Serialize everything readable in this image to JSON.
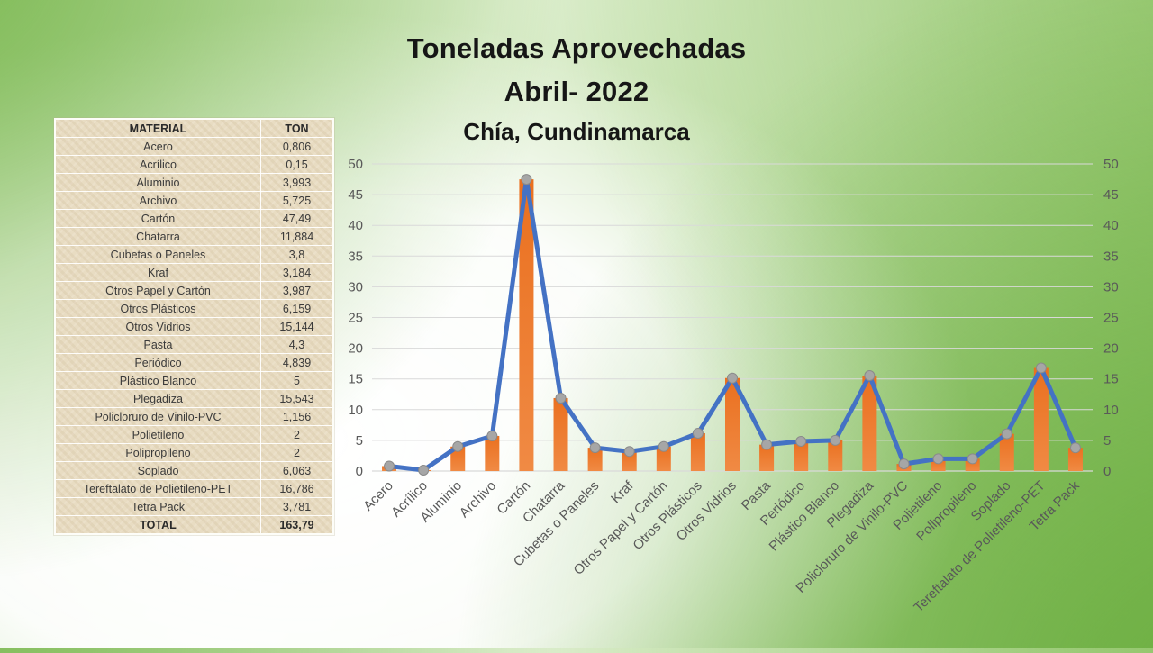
{
  "slide": {
    "title_line1": "Toneladas Aprovechadas",
    "title_line2": "Abril- 2022",
    "subtitle": "Chía, Cundinamarca"
  },
  "table": {
    "headers": [
      "MATERIAL",
      "TON"
    ],
    "rows": [
      [
        "Acero",
        "0,806"
      ],
      [
        "Acrílico",
        "0,15"
      ],
      [
        "Aluminio",
        "3,993"
      ],
      [
        "Archivo",
        "5,725"
      ],
      [
        "Cartón",
        "47,49"
      ],
      [
        "Chatarra",
        "11,884"
      ],
      [
        "Cubetas o Paneles",
        "3,8"
      ],
      [
        "Kraf",
        "3,184"
      ],
      [
        "Otros Papel y Cartón",
        "3,987"
      ],
      [
        "Otros Plásticos",
        "6,159"
      ],
      [
        "Otros Vidrios",
        "15,144"
      ],
      [
        "Pasta",
        "4,3"
      ],
      [
        "Periódico",
        "4,839"
      ],
      [
        "Plástico Blanco",
        "5"
      ],
      [
        "Plegadiza",
        "15,543"
      ],
      [
        "Policloruro de Vinilo-PVC",
        "1,156"
      ],
      [
        "Polietileno",
        "2"
      ],
      [
        "Polipropileno",
        "2"
      ],
      [
        "Soplado",
        "6,063"
      ],
      [
        "Tereftalato de Polietileno-PET",
        "16,786"
      ],
      [
        "Tetra Pack",
        "3,781"
      ]
    ],
    "total_row": [
      "TOTAL",
      "163,79"
    ]
  },
  "chart_data": {
    "type": "bar",
    "title": "Toneladas Aprovechadas Abril- 2022, Chía, Cundinamarca",
    "xlabel": "",
    "ylabel": "",
    "categories": [
      "Acero",
      "Acrílico",
      "Aluminio",
      "Archivo",
      "Cartón",
      "Chatarra",
      "Cubetas o Paneles",
      "Kraf",
      "Otros Papel y Cartón",
      "Otros Plásticos",
      "Otros Vidrios",
      "Pasta",
      "Periódico",
      "Plástico Blanco",
      "Plegadiza",
      "Policloruro de Vinilo-PVC",
      "Polietileno",
      "Polipropileno",
      "Soplado",
      "Tereftalato de Polietileno-PET",
      "Tetra Pack"
    ],
    "series": [
      {
        "name": "TON (barras)",
        "render": "bar",
        "color": "#ED7D31",
        "values": [
          0.806,
          0.15,
          3.993,
          5.725,
          47.49,
          11.884,
          3.8,
          3.184,
          3.987,
          6.159,
          15.144,
          4.3,
          4.839,
          5,
          15.543,
          1.156,
          2,
          2,
          6.063,
          16.786,
          3.781
        ]
      },
      {
        "name": "TON (línea)",
        "render": "line",
        "color": "#4472C4",
        "marker_color": "#A6A6A6",
        "marker_stroke": "#8A8A8A",
        "values": [
          0.806,
          0.15,
          3.993,
          5.725,
          47.49,
          11.884,
          3.8,
          3.184,
          3.987,
          6.159,
          15.144,
          4.3,
          4.839,
          5,
          15.543,
          1.156,
          2,
          2,
          6.063,
          16.786,
          3.781
        ]
      }
    ],
    "ylim": [
      0,
      50
    ],
    "yticks": [
      0,
      5,
      10,
      15,
      20,
      25,
      30,
      35,
      40,
      45,
      50
    ],
    "grid": true,
    "gridline_color": "#D9D9D9",
    "legend": "none",
    "axes": "dual y-axes (left and right), same 0-50 scale",
    "bar_gradient_top": "#EA701F",
    "bar_gradient_bottom": "#F08A44"
  }
}
